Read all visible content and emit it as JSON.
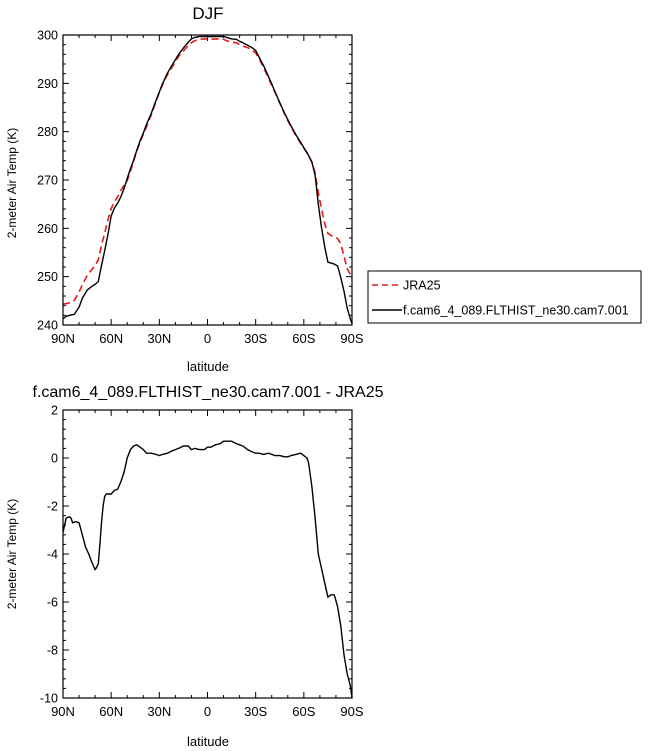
{
  "chart_data": [
    {
      "type": "line",
      "title": "DJF",
      "xlabel": "latitude",
      "ylabel": "2-meter Air Temp (K)",
      "xlim": [
        90,
        -90
      ],
      "ylim": [
        240,
        300
      ],
      "xticks": [
        {
          "v": 90,
          "label": "90N"
        },
        {
          "v": 60,
          "label": "60N"
        },
        {
          "v": 30,
          "label": "30N"
        },
        {
          "v": 0,
          "label": "0"
        },
        {
          "v": -30,
          "label": "30S"
        },
        {
          "v": -60,
          "label": "60S"
        },
        {
          "v": -90,
          "label": "90S"
        }
      ],
      "yticks": [
        240,
        250,
        260,
        270,
        280,
        290,
        300
      ],
      "legend": "outside-right",
      "series": [
        {
          "name": "JRA25",
          "color": "#e41a1c",
          "dash": "dashed",
          "x": [
            90,
            88,
            85,
            83,
            80,
            78,
            75,
            72,
            70,
            68,
            66,
            64,
            62,
            60,
            58,
            56,
            54,
            52,
            50,
            48,
            46,
            44,
            42,
            40,
            38,
            35,
            32,
            30,
            28,
            25,
            22,
            20,
            18,
            15,
            12,
            10,
            8,
            5,
            2,
            0,
            -2,
            -5,
            -8,
            -10,
            -12,
            -15,
            -18,
            -20,
            -22,
            -25,
            -28,
            -30,
            -32,
            -35,
            -38,
            -40,
            -42,
            -45,
            -48,
            -50,
            -52,
            -55,
            -58,
            -60,
            -62,
            -65,
            -67,
            -69,
            -71,
            -73,
            -75,
            -77,
            -79,
            -81,
            -83,
            -85,
            -87,
            -89,
            -90
          ],
          "y": [
            244.3,
            244.4,
            244.7,
            245.1,
            246.8,
            248.3,
            250.2,
            251.5,
            252.3,
            253.5,
            256.5,
            259.0,
            261.8,
            264.1,
            265.5,
            266.5,
            267.8,
            268.9,
            269.9,
            271.8,
            273.9,
            276.1,
            277.8,
            279.5,
            281.0,
            283.5,
            286.3,
            288.1,
            289.7,
            291.8,
            293.4,
            294.5,
            295.6,
            296.7,
            297.8,
            298.4,
            298.8,
            299.1,
            299.2,
            299.2,
            299.1,
            299.2,
            299.2,
            299.1,
            298.8,
            298.5,
            298.4,
            298.0,
            297.7,
            297.4,
            296.8,
            296.3,
            295.2,
            293.2,
            291.1,
            289.6,
            288.2,
            285.9,
            283.7,
            282.3,
            281.0,
            279.2,
            277.6,
            276.6,
            275.6,
            273.7,
            271.5,
            267.4,
            264.0,
            261.0,
            259.0,
            258.5,
            258.3,
            257.9,
            256.8,
            254.2,
            251.7,
            250.4,
            250.2
          ]
        },
        {
          "name": "f.cam6_4_089.FLTHIST_ne30.cam7.001",
          "color": "#000000",
          "dash": "solid",
          "x": [
            90,
            88,
            85,
            83,
            80,
            78,
            75,
            72,
            70,
            68,
            66,
            64,
            62,
            60,
            58,
            56,
            54,
            52,
            50,
            48,
            46,
            44,
            42,
            40,
            38,
            35,
            32,
            30,
            28,
            25,
            22,
            20,
            18,
            15,
            12,
            10,
            8,
            5,
            2,
            0,
            -2,
            -5,
            -8,
            -10,
            -12,
            -15,
            -18,
            -20,
            -22,
            -25,
            -28,
            -30,
            -32,
            -35,
            -38,
            -40,
            -42,
            -45,
            -48,
            -50,
            -52,
            -55,
            -58,
            -60,
            -62,
            -65,
            -67,
            -69,
            -71,
            -73,
            -75,
            -77,
            -79,
            -81,
            -83,
            -85,
            -87,
            -89,
            -90
          ],
          "y": [
            241.3,
            241.8,
            242.1,
            242.2,
            243.7,
            245.5,
            247.2,
            248.0,
            248.4,
            249.0,
            252.3,
            255.4,
            258.8,
            262.6,
            264.2,
            265.2,
            266.5,
            268.2,
            270.3,
            272.3,
            274.1,
            276.2,
            278.1,
            279.7,
            281.5,
            283.8,
            286.5,
            288.2,
            289.9,
            292.1,
            293.8,
            294.9,
            296.0,
            297.3,
            298.5,
            299.2,
            299.5,
            299.7,
            299.7,
            299.7,
            299.7,
            299.7,
            299.7,
            299.7,
            299.5,
            299.2,
            299.1,
            298.7,
            298.4,
            297.9,
            297.3,
            296.8,
            295.5,
            293.6,
            291.4,
            289.9,
            288.3,
            286.0,
            283.8,
            282.5,
            281.2,
            279.4,
            277.8,
            276.7,
            275.7,
            273.7,
            271.0,
            265.0,
            260.2,
            256.2,
            253.0,
            252.8,
            252.6,
            252.2,
            249.8,
            247.0,
            243.5,
            241.2,
            240.3
          ]
        }
      ]
    },
    {
      "type": "line",
      "title": "f.cam6_4_089.FLTHIST_ne30.cam7.001 - JRA25",
      "xlabel": "latitude",
      "ylabel": "2-meter Air Temp (K)",
      "xlim": [
        90,
        -90
      ],
      "ylim": [
        -10,
        2
      ],
      "xticks": [
        {
          "v": 90,
          "label": "90N"
        },
        {
          "v": 60,
          "label": "60N"
        },
        {
          "v": 30,
          "label": "30N"
        },
        {
          "v": 0,
          "label": "0"
        },
        {
          "v": -30,
          "label": "30S"
        },
        {
          "v": -60,
          "label": "60S"
        },
        {
          "v": -90,
          "label": "90S"
        }
      ],
      "yticks": [
        -10,
        -8,
        -6,
        -4,
        -2,
        0,
        2
      ],
      "series": [
        {
          "color": "#000000",
          "dash": "solid",
          "x": [
            90,
            89,
            88,
            86,
            85,
            84,
            82,
            80,
            78,
            76,
            74,
            72,
            70,
            69,
            68,
            67,
            66,
            65,
            64,
            63,
            62,
            60,
            58,
            56,
            54,
            52,
            50,
            48,
            46,
            44,
            42,
            40,
            38,
            35,
            32,
            30,
            28,
            25,
            22,
            20,
            18,
            15,
            12,
            10,
            8,
            5,
            2,
            0,
            -2,
            -5,
            -8,
            -10,
            -12,
            -15,
            -18,
            -20,
            -22,
            -25,
            -28,
            -30,
            -32,
            -35,
            -38,
            -40,
            -42,
            -45,
            -48,
            -50,
            -52,
            -55,
            -58,
            -60,
            -62,
            -63,
            -65,
            -67,
            -69,
            -71,
            -73,
            -75,
            -77,
            -79,
            -81,
            -83,
            -85,
            -87,
            -89,
            -90
          ],
          "y": [
            -3.1,
            -2.8,
            -2.5,
            -2.45,
            -2.5,
            -2.7,
            -2.65,
            -2.7,
            -3.2,
            -3.7,
            -4.0,
            -4.35,
            -4.65,
            -4.55,
            -4.4,
            -3.6,
            -2.7,
            -2.0,
            -1.6,
            -1.5,
            -1.5,
            -1.5,
            -1.35,
            -1.3,
            -1.0,
            -0.6,
            0.0,
            0.35,
            0.5,
            0.55,
            0.45,
            0.35,
            0.2,
            0.2,
            0.15,
            0.1,
            0.15,
            0.2,
            0.3,
            0.35,
            0.4,
            0.5,
            0.5,
            0.35,
            0.4,
            0.35,
            0.35,
            0.45,
            0.45,
            0.55,
            0.6,
            0.7,
            0.7,
            0.7,
            0.6,
            0.55,
            0.5,
            0.35,
            0.25,
            0.2,
            0.2,
            0.15,
            0.2,
            0.15,
            0.1,
            0.1,
            0.05,
            0.05,
            0.1,
            0.15,
            0.2,
            0.1,
            0.0,
            -0.2,
            -1.2,
            -2.5,
            -4.0,
            -4.6,
            -5.2,
            -5.8,
            -5.7,
            -5.7,
            -6.2,
            -7.0,
            -8.2,
            -9.0,
            -9.5,
            -10.0
          ]
        }
      ]
    }
  ]
}
